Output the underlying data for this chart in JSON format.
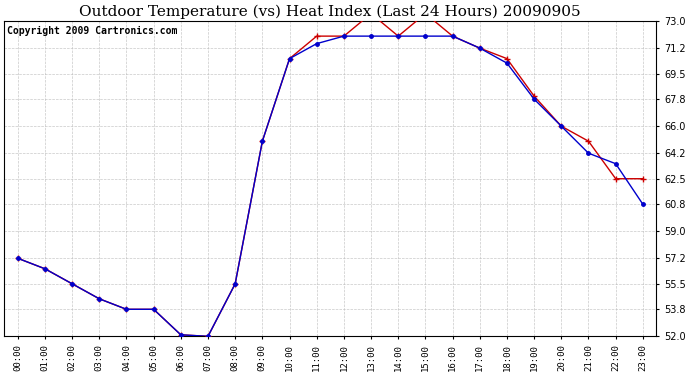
{
  "title": "Outdoor Temperature (vs) Heat Index (Last 24 Hours) 20090905",
  "copyright": "Copyright 2009 Cartronics.com",
  "hours": [
    "00:00",
    "01:00",
    "02:00",
    "03:00",
    "04:00",
    "05:00",
    "06:00",
    "07:00",
    "08:00",
    "09:00",
    "10:00",
    "11:00",
    "12:00",
    "13:00",
    "14:00",
    "15:00",
    "16:00",
    "17:00",
    "18:00",
    "19:00",
    "20:00",
    "21:00",
    "22:00",
    "23:00"
  ],
  "temp": [
    57.2,
    56.5,
    55.5,
    54.5,
    53.8,
    53.8,
    52.1,
    52.0,
    55.5,
    65.0,
    70.5,
    72.0,
    72.0,
    73.5,
    72.0,
    73.5,
    72.0,
    71.2,
    70.5,
    68.0,
    66.0,
    65.0,
    62.5,
    62.5
  ],
  "heat_index": [
    57.2,
    56.5,
    55.5,
    54.5,
    53.8,
    53.8,
    52.1,
    52.0,
    55.5,
    65.0,
    70.5,
    71.5,
    72.0,
    72.0,
    72.0,
    72.0,
    72.0,
    71.2,
    70.2,
    67.8,
    66.0,
    64.2,
    63.5,
    60.8
  ],
  "ylim": [
    52.0,
    73.0
  ],
  "yticks": [
    52.0,
    53.8,
    55.5,
    57.2,
    59.0,
    60.8,
    62.5,
    64.2,
    66.0,
    67.8,
    69.5,
    71.2,
    73.0
  ],
  "temp_color": "#cc0000",
  "heat_color": "#0000cc",
  "bg_color": "#ffffff",
  "grid_color": "#bbbbbb",
  "title_fontsize": 11,
  "copyright_fontsize": 7
}
